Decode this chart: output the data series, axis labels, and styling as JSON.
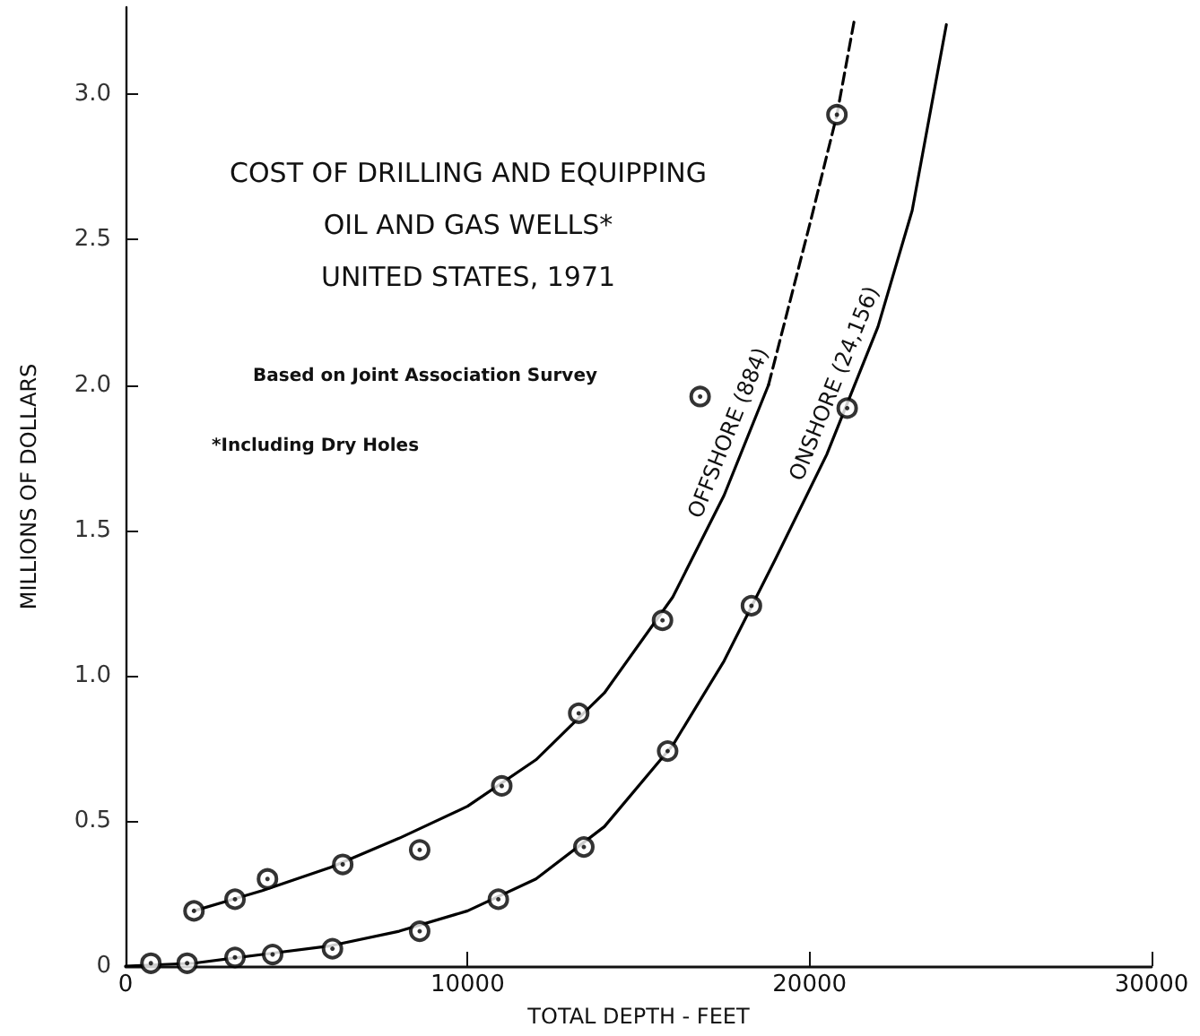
{
  "chart_data": {
    "type": "line",
    "title": "COST OF DRILLING AND EQUIPPING\nOIL AND GAS WELLS*\nUNITED STATES, 1971",
    "subtitle": "Based on Joint Association Survey",
    "xlabel": "TOTAL DEPTH - FEET",
    "ylabel": "MILLIONS OF DOLLARS",
    "annotations": [
      "*Including Dry Holes"
    ],
    "xlim": [
      0,
      30000
    ],
    "xticks": [
      0,
      10000,
      20000,
      30000
    ],
    "ylim": [
      0,
      3.3
    ],
    "yticks": [
      0,
      0.5,
      {
        "value": 1,
        "label": "1.0"
      },
      1.5,
      {
        "value": 2,
        "label": "2.0"
      },
      2.5,
      {
        "value": 3,
        "label": "3.0"
      }
    ],
    "grid": false,
    "legend": false,
    "series": [
      {
        "name": "OFFSHORE (884)",
        "color": "#000000",
        "marker": "none",
        "line_style": "solid",
        "x": [
          2000,
          4000,
          6000,
          8000,
          10000,
          12000,
          14000,
          16000,
          17500,
          18800
        ],
        "values": [
          0.19,
          0.26,
          0.34,
          0.44,
          0.55,
          0.71,
          0.94,
          1.27,
          1.62,
          2.0
        ]
      },
      {
        "color": "#000000",
        "marker": "none",
        "line_style": "dashed",
        "x": [
          18800,
          20000,
          20800,
          21300
        ],
        "values": [
          2.0,
          2.55,
          2.93,
          3.25
        ]
      },
      {
        "name": "ONSHORE (24,156)",
        "color": "#000000",
        "marker": "none",
        "line_style": "solid",
        "x": [
          0,
          2000,
          4000,
          6000,
          8000,
          10000,
          12000,
          14000,
          16000,
          17500,
          19000,
          20500,
          22000,
          23000,
          24000
        ],
        "values": [
          0,
          0.01,
          0.04,
          0.07,
          0.12,
          0.19,
          0.3,
          0.48,
          0.76,
          1.05,
          1.4,
          1.76,
          2.2,
          2.6,
          3.24
        ]
      },
      {
        "type": "scatter",
        "color": "#000000",
        "marker": "circle",
        "x": [
          2000,
          3200,
          4150,
          6350,
          8600,
          11000,
          13250,
          15700,
          16800,
          20800
        ],
        "values": [
          0.19,
          0.23,
          0.3,
          0.35,
          0.4,
          0.62,
          0.87,
          1.19,
          1.96,
          2.93
        ]
      },
      {
        "type": "scatter",
        "color": "#000000",
        "marker": "circle",
        "x": [
          740,
          1800,
          3200,
          4300,
          6050,
          8600,
          10900,
          13400,
          15850,
          18300,
          21100
        ],
        "values": [
          0.01,
          0.01,
          0.03,
          0.04,
          0.06,
          0.12,
          0.23,
          0.41,
          0.74,
          1.24,
          1.92
        ]
      }
    ]
  }
}
